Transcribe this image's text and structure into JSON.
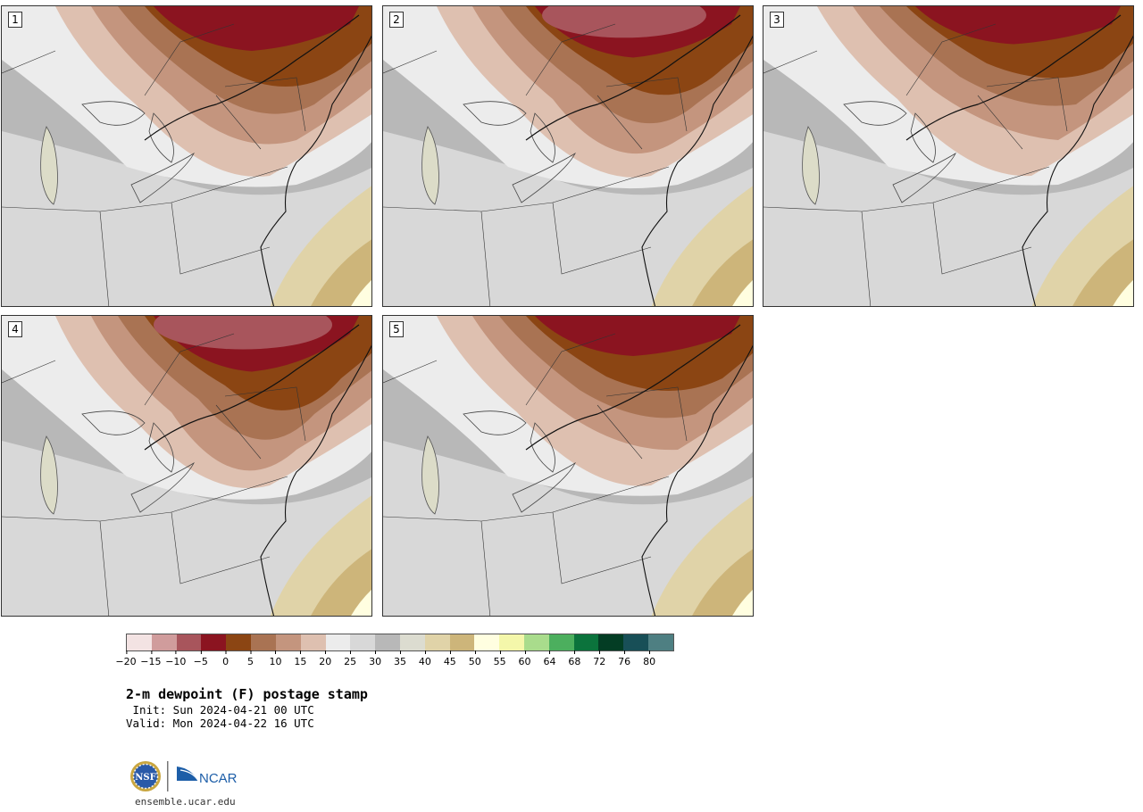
{
  "panels": [
    {
      "label": "1",
      "variant": 0
    },
    {
      "label": "2",
      "variant": 1
    },
    {
      "label": "3",
      "variant": 2
    },
    {
      "label": "4",
      "variant": 3
    },
    {
      "label": "5",
      "variant": 4
    }
  ],
  "colorbar": {
    "colors": [
      "#f3e3e3",
      "#d09c9c",
      "#a8555c",
      "#8b1420",
      "#8b4513",
      "#a97353",
      "#c4957e",
      "#dec0b0",
      "#ececec",
      "#d8d8d8",
      "#b8b8b8",
      "#dcdcd0",
      "#e0d3a8",
      "#cdb57a",
      "#fffee0",
      "#f4f7aa",
      "#a9dc8c",
      "#4caf5e",
      "#0b733c",
      "#033d24",
      "#184f57",
      "#4e7f82"
    ],
    "tick_labels": [
      "−20",
      "−15",
      "−10",
      "−5",
      "0",
      "5",
      "10",
      "15",
      "20",
      "25",
      "30",
      "35",
      "40",
      "45",
      "50",
      "55",
      "60",
      "64",
      "68",
      "72",
      "76",
      "80"
    ]
  },
  "title": "2-m dewpoint (F) postage stamp",
  "init": " Init: Sun 2024-04-21 00 UTC",
  "valid": "Valid: Mon 2024-04-22 16 UTC",
  "logo": {
    "nsf_text": "NSF",
    "ncar_text": "NCAR"
  },
  "footer": "ensemble.ucar.edu"
}
